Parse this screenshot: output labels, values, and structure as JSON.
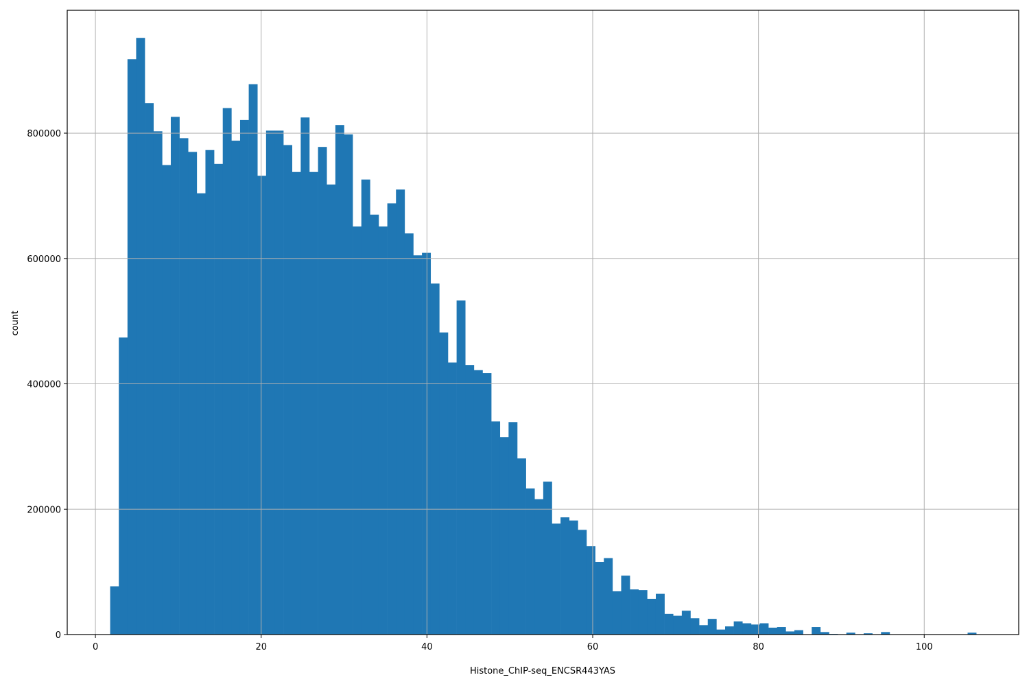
{
  "chart_data": {
    "type": "bar",
    "subtype": "histogram",
    "title": "",
    "xlabel": "Histone_ChIP-seq_ENCSR443YAS",
    "ylabel": "count",
    "xlim": [
      -3.4,
      111.4
    ],
    "ylim": [
      0,
      996000
    ],
    "grid": true,
    "legend": null,
    "bar_color": "#1f77b4",
    "x_ticks": [
      0,
      20,
      40,
      60,
      80,
      100
    ],
    "x_tick_labels": [
      "0",
      "20",
      "40",
      "60",
      "80",
      "100"
    ],
    "y_ticks": [
      0,
      200000,
      400000,
      600000,
      800000
    ],
    "y_tick_labels": [
      "0",
      "200000",
      "400000",
      "600000",
      "800000"
    ],
    "bin_start": 1.78,
    "bin_width": 1.045,
    "values": [
      77000,
      474000,
      918000,
      952000,
      848000,
      803000,
      749000,
      826000,
      792000,
      770000,
      704000,
      773000,
      751000,
      840000,
      788000,
      821000,
      878000,
      732000,
      804000,
      804000,
      781000,
      738000,
      825000,
      738000,
      778000,
      718000,
      813000,
      798000,
      651000,
      726000,
      670000,
      651000,
      688000,
      710000,
      640000,
      605000,
      609000,
      560000,
      482000,
      434000,
      533000,
      430000,
      422000,
      417000,
      340000,
      315000,
      339000,
      281000,
      233000,
      216000,
      244000,
      177000,
      187000,
      182000,
      167000,
      141000,
      116000,
      122000,
      69000,
      94000,
      72000,
      71000,
      57000,
      65000,
      33000,
      30000,
      38000,
      26000,
      15000,
      25000,
      8000,
      13000,
      21000,
      18000,
      16000,
      18000,
      11000,
      12000,
      5000,
      7000,
      0,
      12000,
      4000,
      1000,
      0,
      3000,
      0,
      2000,
      0,
      4000,
      0,
      0,
      0,
      0,
      0,
      0,
      0,
      0,
      0,
      3000
    ]
  }
}
